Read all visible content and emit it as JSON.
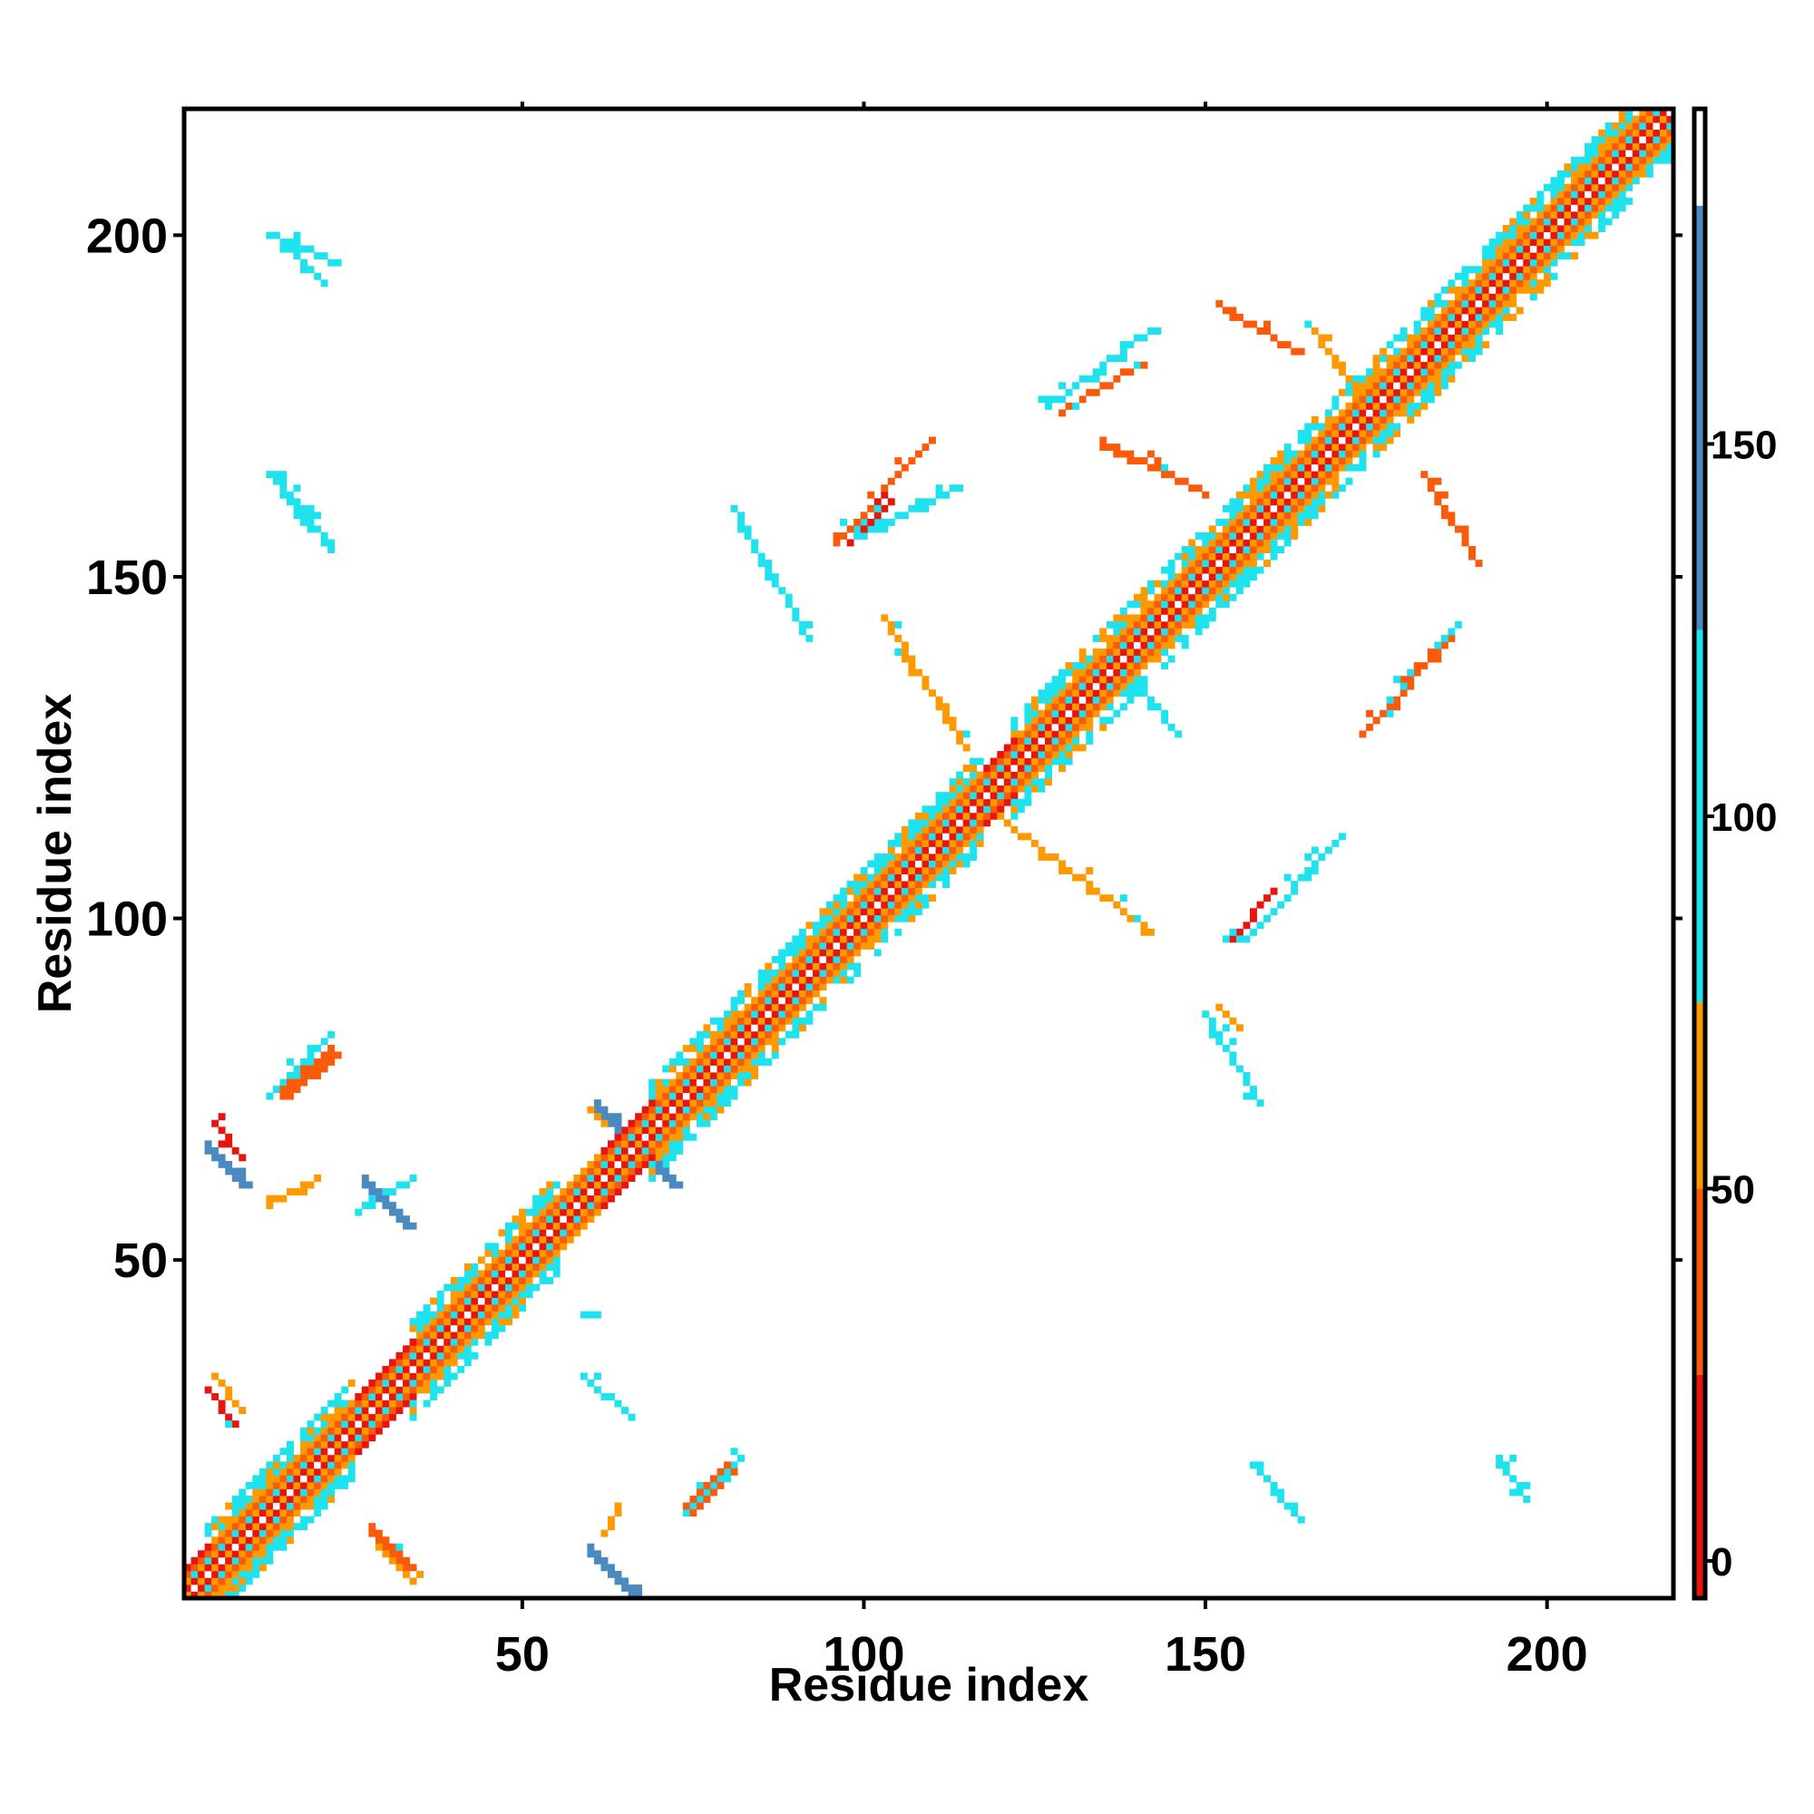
{
  "chart_data": {
    "type": "heatmap",
    "title": "",
    "xlabel": "Residue index",
    "ylabel": "Residue index",
    "xlim": [
      1,
      218
    ],
    "ylim": [
      1,
      218
    ],
    "xticks": [
      50,
      100,
      150,
      200
    ],
    "yticks": [
      50,
      100,
      150,
      200
    ],
    "colorbar": {
      "ticks": [
        0,
        50,
        100,
        150
      ],
      "range": [
        -5,
        195
      ],
      "bands": [
        {
          "from": -5,
          "to": 25,
          "color": "#e8150f"
        },
        {
          "from": 25,
          "to": 50,
          "color": "#fb5a0a"
        },
        {
          "from": 50,
          "to": 75,
          "color": "#ff9900"
        },
        {
          "from": 75,
          "to": 125,
          "color": "#1ee3ee"
        },
        {
          "from": 125,
          "to": 182,
          "color": "#4a8ac0"
        },
        {
          "from": 182,
          "to": 195,
          "color": "#ffffff"
        }
      ]
    },
    "diagonal_segments": [
      {
        "from": 1,
        "to": 4,
        "kind": "red"
      },
      {
        "from": 4,
        "to": 13,
        "kind": "cyan"
      },
      {
        "from": 13,
        "to": 25,
        "kind": "cyan"
      },
      {
        "from": 25,
        "to": 34,
        "kind": "red"
      },
      {
        "from": 34,
        "to": 42,
        "kind": "cyan"
      },
      {
        "from": 42,
        "to": 55,
        "kind": "cyan"
      },
      {
        "from": 55,
        "to": 61,
        "kind": "orange"
      },
      {
        "from": 61,
        "to": 69,
        "kind": "red"
      },
      {
        "from": 69,
        "to": 83,
        "kind": "cyan"
      },
      {
        "from": 83,
        "to": 94,
        "kind": "cyan"
      },
      {
        "from": 94,
        "to": 117,
        "kind": "cyan"
      },
      {
        "from": 117,
        "to": 122,
        "kind": "red"
      },
      {
        "from": 122,
        "to": 147,
        "kind": "cyan"
      },
      {
        "from": 147,
        "to": 175,
        "kind": "cyan"
      },
      {
        "from": 175,
        "to": 195,
        "kind": "cyan"
      },
      {
        "from": 195,
        "to": 218,
        "kind": "cyan"
      }
    ],
    "offdiag_contacts": [
      {
        "i": [
          28,
          33
        ],
        "j": [
          5,
          10
        ],
        "dir": "anti",
        "c": "#fb5a0a"
      },
      {
        "i": [
          29,
          34
        ],
        "j": [
          3,
          8
        ],
        "dir": "anti",
        "c": "#ff9900"
      },
      {
        "i": [
          4,
          8
        ],
        "j": [
          26,
          31
        ],
        "dir": "anti",
        "c": "#e8150f"
      },
      {
        "i": [
          5,
          9
        ],
        "j": [
          28,
          33
        ],
        "dir": "anti",
        "c": "#ff9900"
      },
      {
        "i": [
          60,
          66
        ],
        "j": [
          1,
          7
        ],
        "dir": "anti",
        "c": "#4a8ac0"
      },
      {
        "i": [
          4,
          9
        ],
        "j": [
          61,
          66
        ],
        "dir": "anti",
        "c": "#4a8ac0"
      },
      {
        "i": [
          61,
          67
        ],
        "j": [
          66,
          72
        ],
        "dir": "anti",
        "c": "#4a8ac0"
      },
      {
        "i": [
          66,
          72
        ],
        "j": [
          61,
          67
        ],
        "dir": "anti",
        "c": "#4a8ac0"
      },
      {
        "i": [
          5,
          9
        ],
        "j": [
          65,
          70
        ],
        "dir": "anti",
        "c": "#e8150f"
      },
      {
        "i": [
          60,
          65
        ],
        "j": [
          68,
          72
        ],
        "dir": "anti",
        "c": "#ff9900"
      },
      {
        "i": [
          13,
          22
        ],
        "j": [
          74,
          83
        ],
        "dir": "par",
        "c": "#1ee3ee"
      },
      {
        "i": [
          15,
          22
        ],
        "j": [
          74,
          80
        ],
        "dir": "par",
        "c": "#fb5a0a"
      },
      {
        "i": [
          13,
          19
        ],
        "j": [
          58,
          61
        ],
        "dir": "par",
        "c": "#ff9900"
      },
      {
        "i": [
          27,
          33
        ],
        "j": [
          55,
          61
        ],
        "dir": "anti",
        "c": "#4a8ac0"
      },
      {
        "i": [
          74,
          82
        ],
        "j": [
          13,
          21
        ],
        "dir": "par",
        "c": "#1ee3ee"
      },
      {
        "i": [
          74,
          80
        ],
        "j": [
          13,
          19
        ],
        "dir": "par",
        "c": "#fb5a0a"
      },
      {
        "i": [
          59,
          61
        ],
        "j": [
          42,
          42
        ],
        "dir": "par",
        "c": "#1ee3ee"
      },
      {
        "i": [
          59,
          66
        ],
        "j": [
          27,
          33
        ],
        "dir": "anti",
        "c": "#1ee3ee"
      },
      {
        "i": [
          62,
          64
        ],
        "j": [
          10,
          14
        ],
        "dir": "par",
        "c": "#ff9900"
      },
      {
        "i": [
          157,
          164
        ],
        "j": [
          12,
          20
        ],
        "dir": "anti",
        "c": "#1ee3ee"
      },
      {
        "i": [
          193,
          197
        ],
        "j": [
          15,
          21
        ],
        "dir": "anti",
        "c": "#1ee3ee"
      },
      {
        "i": [
          13,
          19
        ],
        "j": [
          157,
          165
        ],
        "dir": "anti",
        "c": "#1ee3ee"
      },
      {
        "i": [
          15,
          21
        ],
        "j": [
          193,
          199
        ],
        "dir": "anti",
        "c": "#1ee3ee"
      },
      {
        "i": [
          99,
          114
        ],
        "j": [
          156,
          163
        ],
        "dir": "par",
        "c": "#1ee3ee"
      },
      {
        "i": [
          98,
          104
        ],
        "j": [
          155,
          161
        ],
        "dir": "par",
        "c": "#e8150f"
      },
      {
        "i": [
          154,
          160
        ],
        "j": [
          97,
          104
        ],
        "dir": "par",
        "c": "#e8150f"
      },
      {
        "i": [
          156,
          170
        ],
        "j": [
          97,
          112
        ],
        "dir": "par",
        "c": "#1ee3ee"
      },
      {
        "i": [
          150,
          158
        ],
        "j": [
          73,
          86
        ],
        "dir": "anti",
        "c": "#1ee3ee"
      },
      {
        "i": [
          152,
          155
        ],
        "j": [
          84,
          87
        ],
        "dir": "anti",
        "c": "#ff9900"
      },
      {
        "i": [
          118,
          142
        ],
        "j": [
          98,
          116
        ],
        "dir": "anti",
        "c": "#ff9900"
      },
      {
        "i": [
          103,
          115
        ],
        "j": [
          125,
          144
        ],
        "dir": "anti",
        "c": "#ff9900"
      },
      {
        "i": [
          81,
          92
        ],
        "j": [
          141,
          160
        ],
        "dir": "anti",
        "c": "#1ee3ee"
      },
      {
        "i": [
          96,
          110
        ],
        "j": [
          155,
          170
        ],
        "dir": "par",
        "c": "#fb5a0a"
      },
      {
        "i": [
          127,
          142
        ],
        "j": [
          175,
          186
        ],
        "dir": "par",
        "c": "#1ee3ee"
      },
      {
        "i": [
          129,
          140
        ],
        "j": [
          174,
          181
        ],
        "dir": "par",
        "c": "#fb5a0a"
      },
      {
        "i": [
          173,
          186
        ],
        "j": [
          127,
          141
        ],
        "dir": "par",
        "c": "#fb5a0a"
      },
      {
        "i": [
          176,
          187
        ],
        "j": [
          130,
          143
        ],
        "dir": "par",
        "c": "#1ee3ee"
      },
      {
        "i": [
          152,
          163
        ],
        "j": [
          183,
          190
        ],
        "dir": "anti",
        "c": "#fb5a0a"
      },
      {
        "i": [
          182,
          190
        ],
        "j": [
          152,
          165
        ],
        "dir": "anti",
        "c": "#fb5a0a"
      },
      {
        "i": [
          166,
          177
        ],
        "j": [
          171,
          186
        ],
        "dir": "anti",
        "c": "#ff9900"
      },
      {
        "i": [
          136,
          146
        ],
        "j": [
          127,
          139
        ],
        "dir": "anti",
        "c": "#1ee3ee"
      },
      {
        "i": [
          14,
          22
        ],
        "j": [
          154,
          165
        ],
        "dir": "anti",
        "c": "#1ee3ee"
      },
      {
        "i": [
          13,
          23
        ],
        "j": [
          196,
          200
        ],
        "dir": "anti",
        "c": "#1ee3ee"
      },
      {
        "i": [
          26,
          34
        ],
        "j": [
          57,
          62
        ],
        "dir": "par",
        "c": "#1ee3ee"
      },
      {
        "i": [
          135,
          150
        ],
        "j": [
          162,
          170
        ],
        "dir": "anti",
        "c": "#fb5a0a"
      }
    ]
  }
}
